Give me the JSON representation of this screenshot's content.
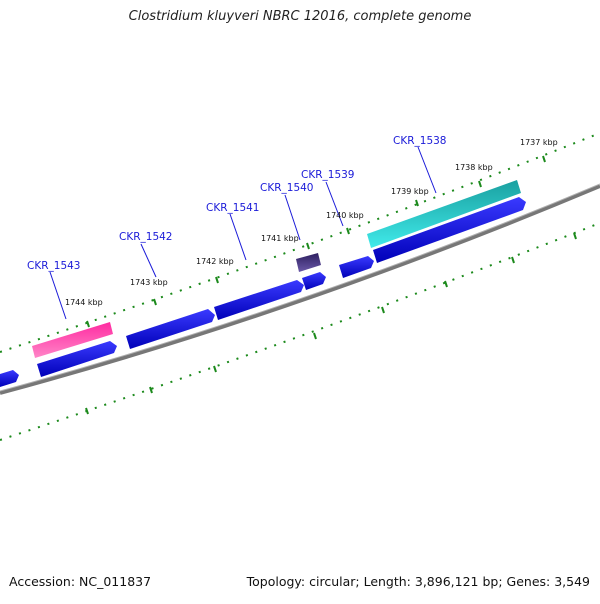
{
  "title": "Clostridium kluyveri NBRC 12016, complete genome",
  "footer": {
    "accession": "Accession: NC_011837",
    "summary": "Topology: circular; Length: 3,896,121 bp; Genes: 3,549"
  },
  "colors": {
    "backbone": "#7a7a7a",
    "tick": "#1c8a1c",
    "cds_forward": "#1010d8",
    "gene_label": "#1a1ad8",
    "highlight_pink": "#e8188a",
    "highlight_cyan": "#14c8c8",
    "highlight_purple": "#3a2a7a"
  },
  "kbp_labels": [
    "1744 kbp",
    "1743 kbp",
    "1742 kbp",
    "1741 kbp",
    "1740 kbp",
    "1739 kbp",
    "1738 kbp",
    "1737 kbp"
  ],
  "gene_labels": [
    "CKR_1543",
    "CKR_1542",
    "CKR_1541",
    "CKR_1540",
    "CKR_1539",
    "CKR_1538"
  ]
}
